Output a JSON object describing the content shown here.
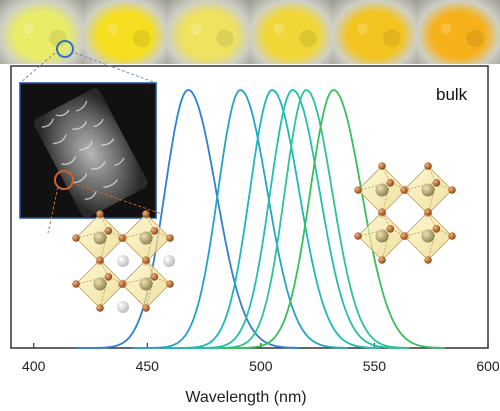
{
  "photos": [
    {
      "name": "powder-1",
      "color": "#e9ec66"
    },
    {
      "name": "powder-2",
      "color": "#f5df20"
    },
    {
      "name": "powder-3",
      "color": "#efe25e"
    },
    {
      "name": "powder-4",
      "color": "#f0d737"
    },
    {
      "name": "powder-5",
      "color": "#f3c420"
    },
    {
      "name": "powder-6",
      "color": "#f6b11a"
    }
  ],
  "chart_data": {
    "type": "line",
    "xlabel": "Wavelength (nm)",
    "ylabel": "",
    "xlim": [
      390,
      600
    ],
    "ylim": [
      0,
      1
    ],
    "x_ticks": [
      400,
      450,
      500,
      550,
      600
    ],
    "grid": false,
    "annotation": "bulk",
    "series": [
      {
        "peak": 468,
        "fwhm": 26,
        "color": "#2f7fd2"
      },
      {
        "peak": 491,
        "fwhm": 25,
        "color": "#23a4c6"
      },
      {
        "peak": 505,
        "fwhm": 25,
        "color": "#1cb8bb"
      },
      {
        "peak": 514,
        "fwhm": 25,
        "color": "#22c0ab"
      },
      {
        "peak": 520,
        "fwhm": 24,
        "color": "#2ec394"
      },
      {
        "peak": 532,
        "fwhm": 26,
        "color": "#37bf5a"
      }
    ]
  }
}
